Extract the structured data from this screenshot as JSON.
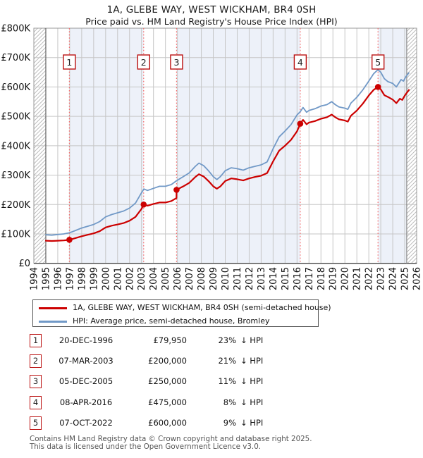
{
  "title": "1A, GLEBE WAY, WEST WICKHAM, BR4 0SH",
  "subtitle": "Price paid vs. HM Land Registry's House Price Index (HPI)",
  "legend": {
    "property_label": "1A, GLEBE WAY, WEST WICKHAM, BR4 0SH (semi-detached house)",
    "hpi_label": "HPI: Average price, semi-detached house, Bromley"
  },
  "table": {
    "rows": [
      {
        "num": "1",
        "date": "20-DEC-1996",
        "price": "£79,950",
        "pct": "23%",
        "rel": "↓ HPI"
      },
      {
        "num": "2",
        "date": "07-MAR-2003",
        "price": "£200,000",
        "pct": "21%",
        "rel": "↓ HPI"
      },
      {
        "num": "3",
        "date": "05-DEC-2005",
        "price": "£250,000",
        "pct": "11%",
        "rel": "↓ HPI"
      },
      {
        "num": "4",
        "date": "08-APR-2016",
        "price": "£475,000",
        "pct": "8%",
        "rel": "↓ HPI"
      },
      {
        "num": "5",
        "date": "07-OCT-2022",
        "price": "£600,000",
        "pct": "9%",
        "rel": "↓ HPI"
      }
    ]
  },
  "footer": {
    "line1": "Contains HM Land Registry data © Crown copyright and database right 2025.",
    "line2": "This data is licensed under the Open Government Licence v3.0."
  },
  "chart_data": {
    "type": "line",
    "title": "1A, GLEBE WAY, WEST WICKHAM, BR4 0SH — Price paid vs. HPI",
    "xlim": [
      1994,
      2026
    ],
    "ylim": [
      0,
      800
    ],
    "y_unit": "£K",
    "x_ticks": [
      1994,
      1995,
      1996,
      1997,
      1998,
      1999,
      2000,
      2001,
      2002,
      2003,
      2004,
      2005,
      2006,
      2007,
      2008,
      2009,
      2010,
      2011,
      2012,
      2013,
      2014,
      2015,
      2016,
      2017,
      2018,
      2019,
      2020,
      2021,
      2022,
      2023,
      2024,
      2025,
      2026
    ],
    "y_ticks": [
      {
        "v": 0,
        "label": "£0"
      },
      {
        "v": 100,
        "label": "£100K"
      },
      {
        "v": 200,
        "label": "£200K"
      },
      {
        "v": 300,
        "label": "£300K"
      },
      {
        "v": 400,
        "label": "£400K"
      },
      {
        "v": 500,
        "label": "£500K"
      },
      {
        "v": 600,
        "label": "£600K"
      },
      {
        "v": 700,
        "label": "£700K"
      },
      {
        "v": 800,
        "label": "£800K"
      }
    ],
    "colors": {
      "price": "#cc0000",
      "hpi": "#7199c7",
      "band": "#edf1f9",
      "marker_line": "#f56a6a",
      "marker_box_border": "#bb1111",
      "grid": "#c6c6c6",
      "border": "#999999",
      "hatch": "#b5b5b5"
    },
    "grid": true,
    "legend_position": "below",
    "data_start_year": 1995,
    "data_end_year": 2025.17,
    "line_end_year": 2025.35,
    "bands": [
      [
        1996.97,
        2003.18
      ],
      [
        2005.93,
        2016.27
      ],
      [
        2022.77,
        2025.17
      ]
    ],
    "hatch_regions": [
      [
        1994,
        1995
      ],
      [
        2025.17,
        2026
      ]
    ],
    "sales": [
      {
        "num": "1",
        "year": 1996.97,
        "price": 79.95,
        "date": "20-DEC-1996"
      },
      {
        "num": "2",
        "year": 2003.18,
        "price": 200,
        "date": "07-MAR-2003"
      },
      {
        "num": "3",
        "year": 2005.93,
        "price": 250,
        "date": "05-DEC-2005"
      },
      {
        "num": "4",
        "year": 2016.27,
        "price": 475,
        "date": "08-APR-2016"
      },
      {
        "num": "5",
        "year": 2022.77,
        "price": 600,
        "date": "07-OCT-2022"
      }
    ],
    "series": [
      {
        "name": "hpi",
        "label": "HPI: Average price, semi-detached house, Bromley",
        "color": "#7199c7",
        "width": 1.8,
        "points": [
          [
            1995,
            97
          ],
          [
            1995.5,
            96
          ],
          [
            1996,
            98
          ],
          [
            1996.5,
            100
          ],
          [
            1997,
            104
          ],
          [
            1997.5,
            112
          ],
          [
            1998,
            120
          ],
          [
            1998.5,
            126
          ],
          [
            1999,
            132
          ],
          [
            1999.5,
            142
          ],
          [
            2000,
            158
          ],
          [
            2000.5,
            166
          ],
          [
            2001,
            172
          ],
          [
            2001.5,
            178
          ],
          [
            2002,
            188
          ],
          [
            2002.5,
            205
          ],
          [
            2003,
            240
          ],
          [
            2003.2,
            253
          ],
          [
            2003.5,
            248
          ],
          [
            2004,
            255
          ],
          [
            2004.5,
            262
          ],
          [
            2005,
            262
          ],
          [
            2005.5,
            268
          ],
          [
            2005.93,
            281
          ],
          [
            2006.5,
            295
          ],
          [
            2007,
            308
          ],
          [
            2007.5,
            330
          ],
          [
            2007.8,
            341
          ],
          [
            2008.2,
            332
          ],
          [
            2008.6,
            315
          ],
          [
            2009,
            295
          ],
          [
            2009.3,
            285
          ],
          [
            2009.6,
            295
          ],
          [
            2010,
            315
          ],
          [
            2010.5,
            325
          ],
          [
            2011,
            322
          ],
          [
            2011.5,
            317
          ],
          [
            2012,
            325
          ],
          [
            2012.5,
            330
          ],
          [
            2013,
            335
          ],
          [
            2013.5,
            345
          ],
          [
            2014,
            390
          ],
          [
            2014.5,
            430
          ],
          [
            2015,
            450
          ],
          [
            2015.5,
            472
          ],
          [
            2016,
            505
          ],
          [
            2016.27,
            516
          ],
          [
            2016.5,
            530
          ],
          [
            2016.8,
            514
          ],
          [
            2017,
            520
          ],
          [
            2017.5,
            526
          ],
          [
            2018,
            535
          ],
          [
            2018.5,
            540
          ],
          [
            2018.9,
            550
          ],
          [
            2019.2,
            540
          ],
          [
            2019.5,
            532
          ],
          [
            2020,
            528
          ],
          [
            2020.25,
            524
          ],
          [
            2020.5,
            545
          ],
          [
            2021,
            565
          ],
          [
            2021.5,
            590
          ],
          [
            2022,
            620
          ],
          [
            2022.4,
            645
          ],
          [
            2022.77,
            659
          ],
          [
            2023,
            650
          ],
          [
            2023.3,
            628
          ],
          [
            2023.6,
            618
          ],
          [
            2024,
            612
          ],
          [
            2024.3,
            600
          ],
          [
            2024.7,
            625
          ],
          [
            2024.9,
            620
          ],
          [
            2025.1,
            635
          ],
          [
            2025.35,
            648
          ]
        ]
      },
      {
        "name": "price",
        "label": "1A, GLEBE WAY, WEST WICKHAM, BR4 0SH (semi-detached house)",
        "color": "#cc0000",
        "width": 2.2,
        "points": [
          [
            1995,
            77
          ],
          [
            1995.5,
            76
          ],
          [
            1996,
            77
          ],
          [
            1996.5,
            78
          ],
          [
            1996.97,
            79.95
          ],
          [
            1997.5,
            86
          ],
          [
            1998,
            92
          ],
          [
            1998.5,
            97
          ],
          [
            1999,
            102
          ],
          [
            1999.5,
            109
          ],
          [
            2000,
            122
          ],
          [
            2000.5,
            128
          ],
          [
            2001,
            132
          ],
          [
            2001.5,
            137
          ],
          [
            2002,
            145
          ],
          [
            2002.5,
            158
          ],
          [
            2003,
            185
          ],
          [
            2003.18,
            200
          ],
          [
            2003.5,
            196
          ],
          [
            2004,
            202
          ],
          [
            2004.5,
            207
          ],
          [
            2005,
            207
          ],
          [
            2005.5,
            212
          ],
          [
            2005.92,
            222
          ],
          [
            2005.93,
            250
          ],
          [
            2006.5,
            262
          ],
          [
            2007,
            274
          ],
          [
            2007.5,
            294
          ],
          [
            2007.8,
            303
          ],
          [
            2008.2,
            295
          ],
          [
            2008.6,
            280
          ],
          [
            2009,
            262
          ],
          [
            2009.3,
            254
          ],
          [
            2009.6,
            262
          ],
          [
            2010,
            280
          ],
          [
            2010.5,
            289
          ],
          [
            2011,
            286
          ],
          [
            2011.5,
            282
          ],
          [
            2012,
            289
          ],
          [
            2012.5,
            294
          ],
          [
            2013,
            298
          ],
          [
            2013.5,
            307
          ],
          [
            2014,
            347
          ],
          [
            2014.5,
            383
          ],
          [
            2015,
            400
          ],
          [
            2015.5,
            420
          ],
          [
            2016,
            449
          ],
          [
            2016.27,
            475
          ],
          [
            2016.5,
            488
          ],
          [
            2016.8,
            473
          ],
          [
            2017,
            479
          ],
          [
            2017.5,
            484
          ],
          [
            2018,
            492
          ],
          [
            2018.5,
            497
          ],
          [
            2018.9,
            506
          ],
          [
            2019.2,
            497
          ],
          [
            2019.5,
            490
          ],
          [
            2020,
            486
          ],
          [
            2020.25,
            482
          ],
          [
            2020.5,
            502
          ],
          [
            2021,
            520
          ],
          [
            2021.5,
            543
          ],
          [
            2022,
            571
          ],
          [
            2022.4,
            590
          ],
          [
            2022.77,
            600
          ],
          [
            2023,
            592
          ],
          [
            2023.3,
            572
          ],
          [
            2023.6,
            566
          ],
          [
            2024,
            557
          ],
          [
            2024.3,
            545
          ],
          [
            2024.6,
            560
          ],
          [
            2024.8,
            556
          ],
          [
            2025,
            570
          ],
          [
            2025.35,
            590
          ]
        ]
      }
    ]
  }
}
